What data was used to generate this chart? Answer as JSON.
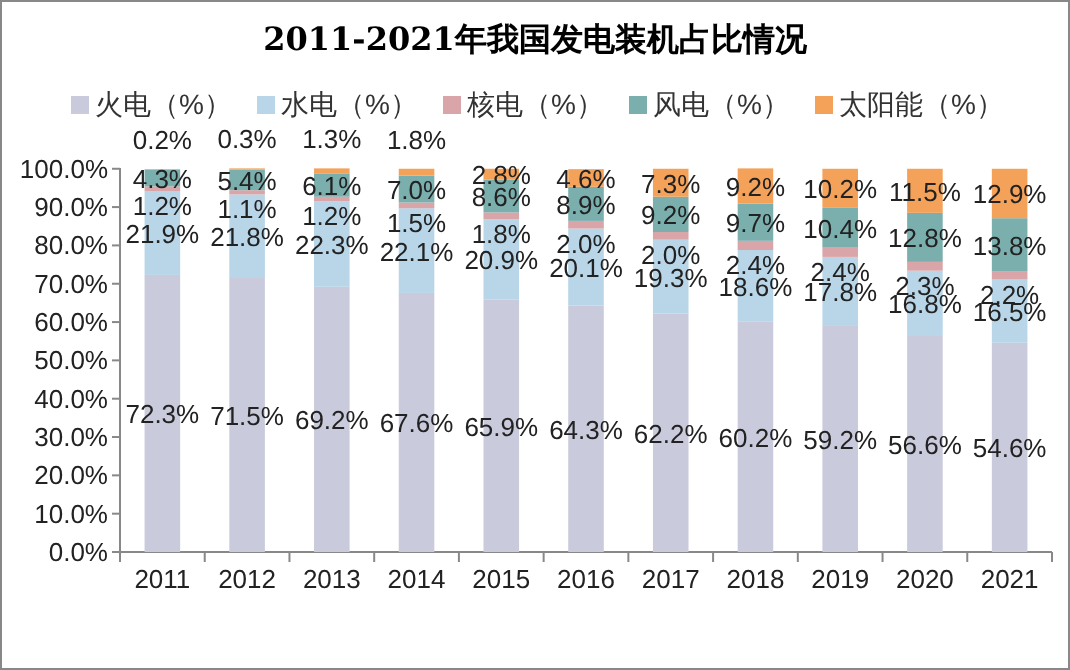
{
  "chart_data": {
    "type": "bar",
    "stacked": true,
    "title": "2011-2021年我国发电装机占比情况",
    "legend": "top",
    "grid": false,
    "categories": [
      "2011",
      "2012",
      "2013",
      "2014",
      "2015",
      "2016",
      "2017",
      "2018",
      "2019",
      "2020",
      "2021"
    ],
    "ylim": [
      0,
      100.2
    ],
    "yticks": [
      {
        "value": 0,
        "label": "0.0%"
      },
      {
        "value": 10,
        "label": "10.0%"
      },
      {
        "value": 20,
        "label": "20.0%"
      },
      {
        "value": 30,
        "label": "30.0%"
      },
      {
        "value": 40,
        "label": "40.0%"
      },
      {
        "value": 50,
        "label": "50.0%"
      },
      {
        "value": 60,
        "label": "60.0%"
      },
      {
        "value": 70,
        "label": "70.0%"
      },
      {
        "value": 80,
        "label": "80.0%"
      },
      {
        "value": 90,
        "label": "90.0%"
      },
      {
        "value": 100,
        "label": "100.0%"
      }
    ],
    "series": [
      {
        "name": "火电（%）",
        "color": "#c9cbdc",
        "values": [
          72.3,
          71.5,
          69.2,
          67.6,
          65.9,
          64.3,
          62.2,
          60.2,
          59.2,
          56.6,
          54.6
        ],
        "value_labels": [
          "72.3%",
          "71.5%",
          "69.2%",
          "67.6%",
          "65.9%",
          "64.3%",
          "62.2%",
          "60.2%",
          "59.2%",
          "56.6%",
          "54.6%"
        ]
      },
      {
        "name": "水电（%）",
        "color": "#b8d6e8",
        "values": [
          21.9,
          21.8,
          22.3,
          22.1,
          20.9,
          20.1,
          19.3,
          18.6,
          17.8,
          16.8,
          16.5
        ],
        "value_labels": [
          "21.9%",
          "21.8%",
          "22.3%",
          "22.1%",
          "20.9%",
          "20.1%",
          "19.3%",
          "18.6%",
          "17.8%",
          "16.8%",
          "16.5%"
        ]
      },
      {
        "name": "核电（%）",
        "color": "#d9a5a8",
        "values": [
          1.2,
          1.1,
          1.2,
          1.5,
          1.8,
          2.0,
          2.0,
          2.4,
          2.4,
          2.3,
          2.2
        ],
        "value_labels": [
          "1.2%",
          "1.1%",
          "1.2%",
          "1.5%",
          "1.8%",
          "2.0%",
          "2.0%",
          "2.4%",
          "2.4%",
          "2.3%",
          "2.2%"
        ]
      },
      {
        "name": "风电（%）",
        "color": "#7aafae",
        "values": [
          4.3,
          5.4,
          6.1,
          7.0,
          8.6,
          8.9,
          9.2,
          9.7,
          10.4,
          12.8,
          13.8
        ],
        "value_labels": [
          "4.3%",
          "5.4%",
          "6.1%",
          "7.0%",
          "8.6%",
          "8.9%",
          "9.2%",
          "9.7%",
          "10.4%",
          "12.8%",
          "13.8%"
        ]
      },
      {
        "name": "太阳能（%）",
        "color": "#f4a259",
        "values": [
          0.2,
          0.3,
          1.3,
          1.8,
          2.8,
          4.6,
          7.3,
          9.2,
          10.2,
          11.5,
          12.9
        ],
        "value_labels": [
          "0.2%",
          "0.3%",
          "1.3%",
          "1.8%",
          "2.8%",
          "4.6%",
          "7.3%",
          "9.2%",
          "10.2%",
          "11.5%",
          "12.9%"
        ]
      }
    ]
  }
}
